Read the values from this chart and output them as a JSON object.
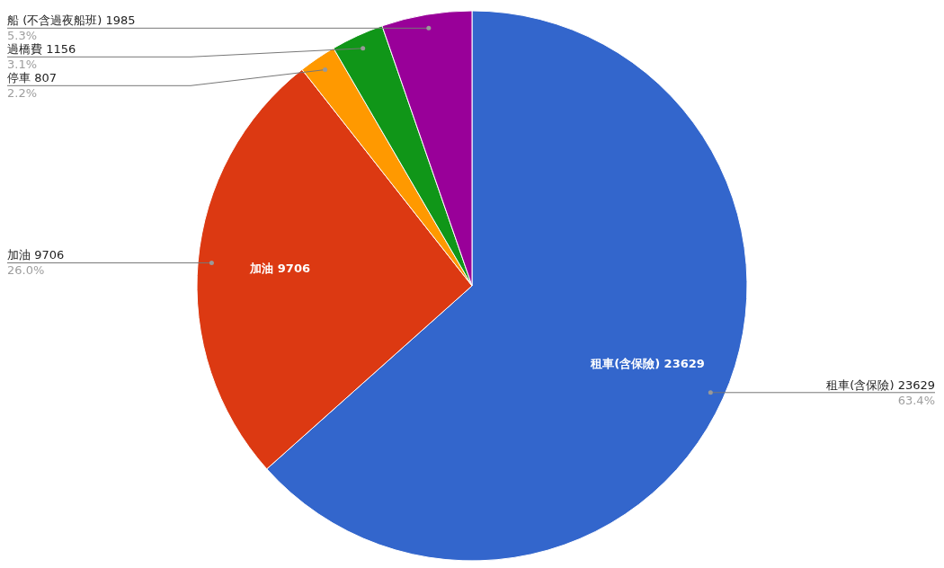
{
  "chart_data": {
    "type": "pie",
    "categories": [
      "租車(含保險) 23629",
      "加油 9706",
      "停車 807",
      "過橋費 1156",
      "船 (不含過夜船班) 1985"
    ],
    "values": [
      63.4,
      26.0,
      2.2,
      3.1,
      5.3
    ],
    "colors": [
      "#3366cc",
      "#dc3912",
      "#ff9900",
      "#109618",
      "#990099"
    ],
    "value_labels": [
      "63.4%",
      "26.0%",
      "2.2%",
      "3.1%",
      "5.3%"
    ],
    "legend": false
  }
}
